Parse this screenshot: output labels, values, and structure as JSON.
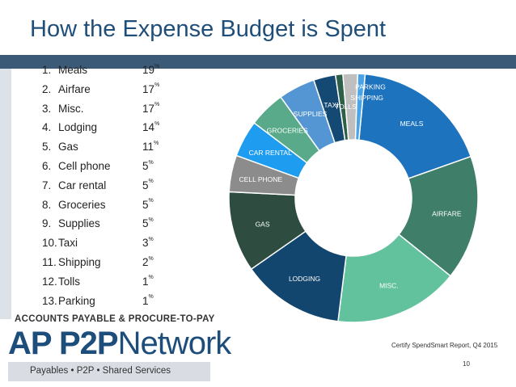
{
  "slide": {
    "title": "How the Expense Budget is Spent",
    "source": "Certify SpendSmart Report, Q4 2015",
    "page_number": "10"
  },
  "logo": {
    "top_line": "ACCOUNTS PAYABLE & PROCURE-TO-PAY",
    "main_bold": "AP P2P",
    "main_light": "Network",
    "tagline": "Payables  •  P2P  •  Shared Services"
  },
  "list": [
    {
      "num": "1.",
      "label": "Meals",
      "value": "19",
      "unit": "%"
    },
    {
      "num": "2.",
      "label": "Airfare",
      "value": "17",
      "unit": "%"
    },
    {
      "num": "3.",
      "label": "Misc.",
      "value": "17",
      "unit": "%"
    },
    {
      "num": "4.",
      "label": "Lodging",
      "value": "14",
      "unit": "%"
    },
    {
      "num": "5.",
      "label": "Gas",
      "value": "11",
      "unit": "%"
    },
    {
      "num": "6.",
      "label": "Cell phone",
      "value": "5",
      "unit": "%"
    },
    {
      "num": "7.",
      "label": "Car rental",
      "value": "5",
      "unit": "%"
    },
    {
      "num": "8.",
      "label": "Groceries",
      "value": "5",
      "unit": "%"
    },
    {
      "num": "9.",
      "label": "Supplies",
      "value": "5",
      "unit": "%"
    },
    {
      "num": "10.",
      "label": "Taxi",
      "value": "3",
      "unit": "%"
    },
    {
      "num": "11.",
      "label": "Shipping",
      "value": "2",
      "unit": "%"
    },
    {
      "num": "12.",
      "label": "Tolls",
      "value": "1",
      "unit": "%"
    },
    {
      "num": "13.",
      "label": "Parking",
      "value": "1",
      "unit": "%"
    }
  ],
  "chart_data": {
    "type": "pie",
    "subtype": "donut",
    "title": "",
    "slices": [
      {
        "label": "MEALS",
        "value": 19,
        "color": "#1e73be"
      },
      {
        "label": "AIRFARE",
        "value": 17,
        "color": "#3f7f69"
      },
      {
        "label": "MISC.",
        "value": 17,
        "color": "#62c29e"
      },
      {
        "label": "LODGING",
        "value": 14,
        "color": "#13466e"
      },
      {
        "label": "GAS",
        "value": 11,
        "color": "#2e4d40"
      },
      {
        "label": "CELL PHONE",
        "value": 5,
        "color": "#8c8c8c"
      },
      {
        "label": "CAR RENTAL",
        "value": 5,
        "color": "#1e9cf0"
      },
      {
        "label": "GROCERIES",
        "value": 5,
        "color": "#59aa8b"
      },
      {
        "label": "SUPPLIES",
        "value": 5,
        "color": "#5496d4"
      },
      {
        "label": "TAXI",
        "value": 3,
        "color": "#134972"
      },
      {
        "label": "TOLLS",
        "value": 1,
        "color": "#2c5e48"
      },
      {
        "label": "SHIPPING",
        "value": 2,
        "color": "#bfbfbf"
      },
      {
        "label": "PARKING",
        "value": 1,
        "color": "#4aa3e6"
      }
    ]
  }
}
